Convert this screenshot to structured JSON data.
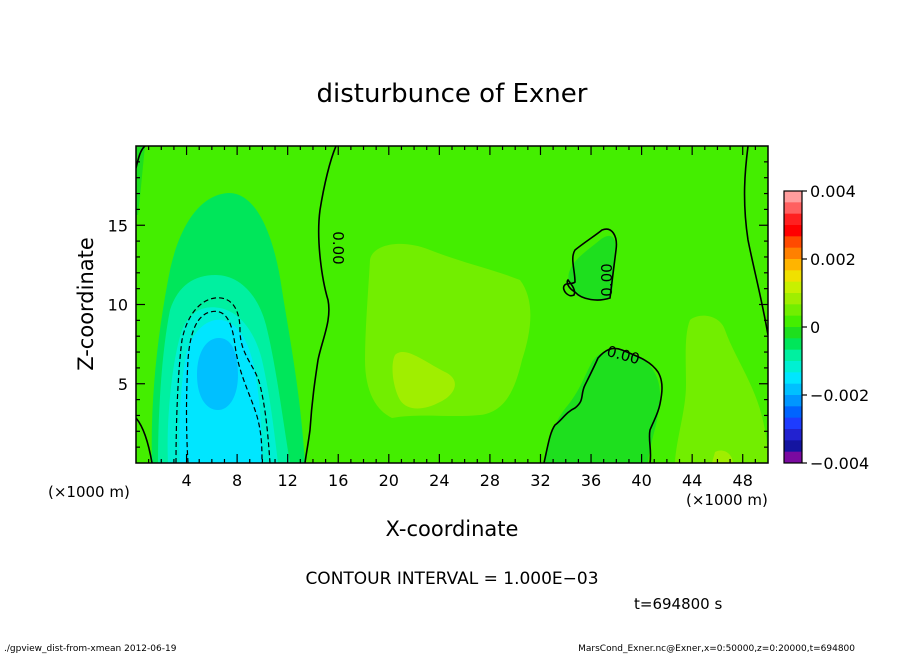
{
  "chart_data": {
    "type": "heatmap",
    "title": "disturbunce of Exner",
    "xlabel": "X-coordinate",
    "ylabel": "Z-coordinate",
    "xlim": [
      0,
      50
    ],
    "ylim": [
      0,
      20
    ],
    "x_ticks": [
      4,
      8,
      12,
      16,
      20,
      24,
      28,
      32,
      36,
      40,
      44,
      48
    ],
    "y_ticks": [
      5,
      10,
      15
    ],
    "x_unit": "(×1000 m)",
    "y_unit": "(×1000 m)",
    "contour_label": "0.00",
    "colorbar": {
      "min": -0.004,
      "max": 0.004,
      "tick_labels": [
        "0.004",
        "0.002",
        "0",
        "−0.002",
        "−0.004"
      ],
      "tick_values": [
        0.004,
        0.002,
        0,
        -0.002,
        -0.004
      ],
      "colors": [
        "#ff9d9d",
        "#ff6060",
        "#ff2020",
        "#ff0000",
        "#ff4a00",
        "#ff8000",
        "#ffb400",
        "#f0e000",
        "#c8f000",
        "#a0ee00",
        "#72ee00",
        "#44ee00",
        "#1edf1e",
        "#00e65a",
        "#00f0a0",
        "#00f0d2",
        "#00e6ff",
        "#00c0ff",
        "#0096ff",
        "#0064ff",
        "#1e3cff",
        "#2222d0",
        "#1414a0",
        "#7a0aa0"
      ]
    },
    "contour_interval_text": "CONTOUR INTERVAL = 1.000E−03",
    "time_text": "t=694800 s"
  },
  "footer": {
    "left": "./gpview_dist-from-xmean   2012-06-19",
    "right": "MarsCond_Exner.nc@Exner,x=0:50000,z=0:20000,t=694800"
  }
}
